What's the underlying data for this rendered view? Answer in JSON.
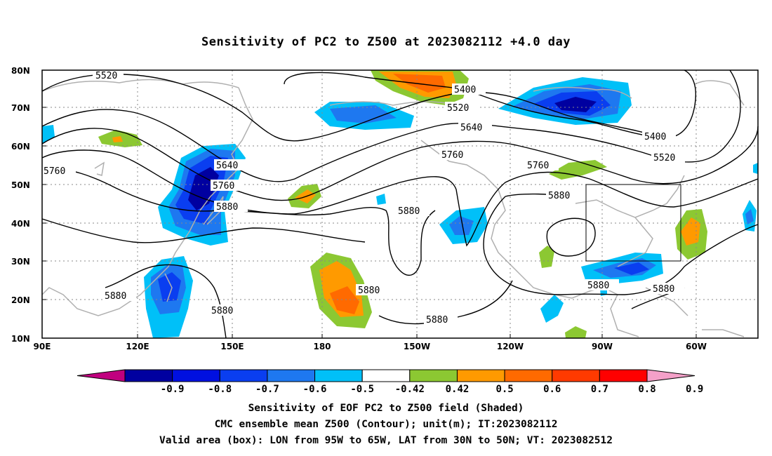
{
  "title": "Sensitivity of PC2 to Z500 at 2023082112 +4.0 day",
  "axes": {
    "lat_labels": [
      "80N",
      "70N",
      "60N",
      "50N",
      "40N",
      "30N",
      "20N",
      "10N"
    ],
    "lon_labels": [
      "90E",
      "120E",
      "150E",
      "180",
      "150W",
      "120W",
      "90W",
      "60W"
    ]
  },
  "contour_labels": [
    "5520",
    "5400",
    "5520",
    "5640",
    "5400",
    "5520",
    "5760",
    "5640",
    "5760",
    "5880",
    "5760",
    "5760",
    "5880",
    "5880",
    "5880",
    "5880",
    "5880",
    "5880",
    "5880",
    "5880"
  ],
  "colorbar": {
    "labels": [
      "-0.9",
      "-0.8",
      "-0.7",
      "-0.6",
      "-0.5",
      "-0.42",
      "0.42",
      "0.5",
      "0.6",
      "0.7",
      "0.8",
      "0.9"
    ],
    "colors": [
      "#c0007f",
      "#0000a0",
      "#0010e0",
      "#0a3ef0",
      "#1e78f0",
      "#00c0f8",
      "#ffffff",
      "#8cc832",
      "#ff9a00",
      "#ff6a00",
      "#ff3a00",
      "#ff0000",
      "#f4a0c8"
    ]
  },
  "captions": {
    "line1": "Sensitivity of EOF PC2 to Z500 field (Shaded)",
    "line2": "CMC ensemble mean Z500 (Contour); unit(m); IT:2023082112",
    "line3": "Valid area (box): LON from 95W to 65W, LAT from 30N to 50N; VT: 2023082512"
  }
}
